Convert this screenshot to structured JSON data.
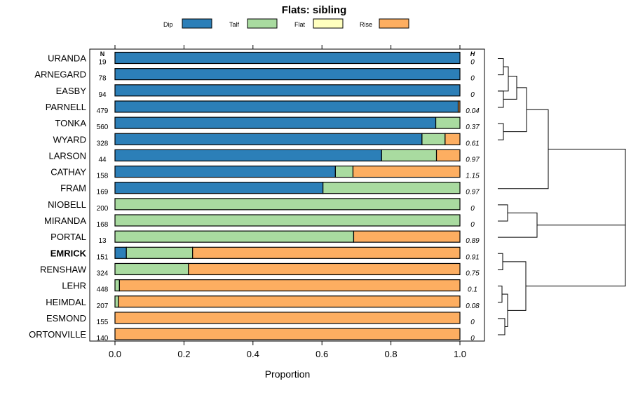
{
  "chart_data": {
    "type": "bar",
    "stacked": true,
    "orientation": "horizontal",
    "title": "Flats: sibling",
    "xlabel": "Proportion",
    "ylabel": "",
    "xlim": [
      0,
      1
    ],
    "xticks": [
      "0.0",
      "0.2",
      "0.4",
      "0.6",
      "0.8",
      "1.0"
    ],
    "n_header": "N",
    "h_header": "H",
    "legend": [
      {
        "name": "Dip",
        "color": "#2c7fb8"
      },
      {
        "name": "Talf",
        "color": "#a9dba0"
      },
      {
        "name": "Flat",
        "color": "#ffffbf"
      },
      {
        "name": "Rise",
        "color": "#fdae61"
      }
    ],
    "highlight": "EMRICK",
    "categories": [
      "URANDA",
      "ARNEGARD",
      "EASBY",
      "PARNELL",
      "TONKA",
      "WYARD",
      "LARSON",
      "CATHAY",
      "FRAM",
      "NIOBELL",
      "MIRANDA",
      "PORTAL",
      "EMRICK",
      "RENSHAW",
      "LEHR",
      "HEIMDAL",
      "ESMOND",
      "ORTONVILLE"
    ],
    "n": [
      "19",
      "78",
      "94",
      "479",
      "560",
      "328",
      "44",
      "158",
      "169",
      "200",
      "168",
      "13",
      "151",
      "324",
      "448",
      "207",
      "155",
      "140"
    ],
    "h": [
      "0",
      "0",
      "0",
      "0.04",
      "0.37",
      "0.61",
      "0.97",
      "1.15",
      "0.97",
      "0",
      "0",
      "0.89",
      "0.91",
      "0.75",
      "0.1",
      "0.08",
      "0",
      "0"
    ],
    "series": [
      {
        "name": "Dip",
        "values": [
          1.0,
          1.0,
          1.0,
          0.995,
          0.93,
          0.89,
          0.773,
          0.639,
          0.603,
          0,
          0,
          0,
          0.033,
          0,
          0,
          0,
          0,
          0
        ]
      },
      {
        "name": "Talf",
        "values": [
          0,
          0,
          0,
          0,
          0.07,
          0.067,
          0.159,
          0.051,
          0.397,
          1.0,
          1.0,
          0.692,
          0.192,
          0.213,
          0.013,
          0.01,
          0,
          0
        ]
      },
      {
        "name": "Flat",
        "values": [
          0,
          0,
          0,
          0,
          0,
          0,
          0,
          0,
          0,
          0,
          0,
          0,
          0,
          0,
          0,
          0,
          0,
          0
        ]
      },
      {
        "name": "Rise",
        "values": [
          0,
          0,
          0,
          0.005,
          0,
          0.043,
          0.068,
          0.31,
          0,
          0,
          0,
          0.308,
          0.775,
          0.787,
          0.987,
          0.99,
          1.0,
          1.0
        ]
      }
    ]
  }
}
